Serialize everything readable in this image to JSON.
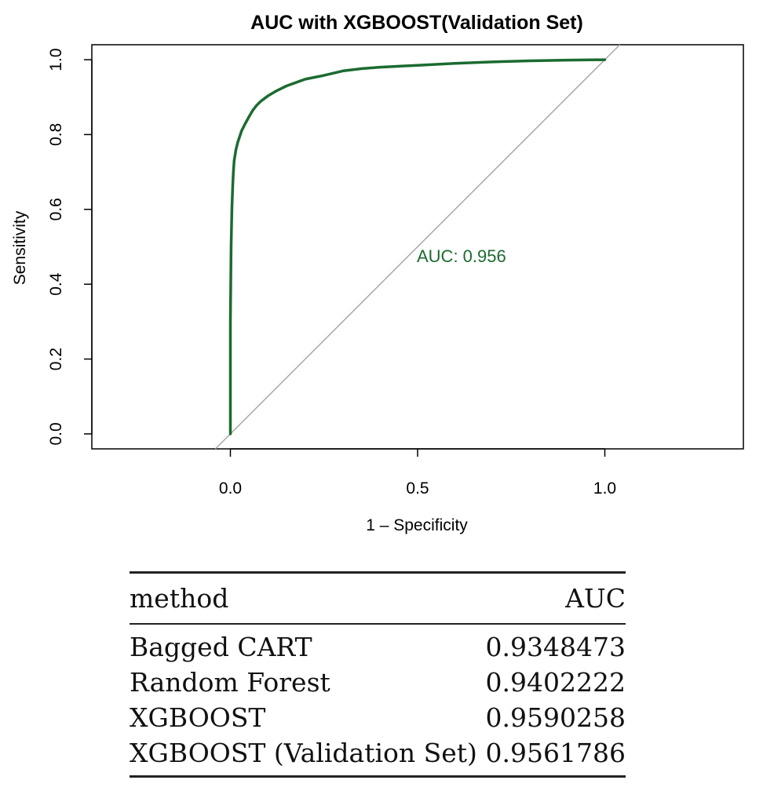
{
  "chart_data": {
    "type": "line",
    "title": "AUC with XGBOOST(Validation Set)",
    "xlabel": "1 – Specificity",
    "ylabel": "Sensitivity",
    "xlim": [
      -0.37,
      1.37
    ],
    "ylim": [
      -0.04,
      1.04
    ],
    "x_ticks": [
      "0.0",
      "0.5",
      "1.0"
    ],
    "y_ticks": [
      "0.0",
      "0.2",
      "0.4",
      "0.6",
      "0.8",
      "1.0"
    ],
    "grid": false,
    "annotation": "AUC: 0.956",
    "colors": {
      "roc": "#1b6b30",
      "reference": "#a8a8a8"
    },
    "series": [
      {
        "x": [
          0,
          0.0,
          0.002,
          0.004,
          0.006,
          0.008,
          0.01,
          0.015,
          0.02,
          0.025,
          0.03,
          0.04,
          0.05,
          0.06,
          0.07,
          0.08,
          0.1,
          0.12,
          0.15,
          0.2,
          0.25,
          0.3,
          0.35,
          0.4,
          0.5,
          0.6,
          0.7,
          0.8,
          0.9,
          1.0
        ],
        "y": [
          0,
          0.3,
          0.5,
          0.6,
          0.66,
          0.7,
          0.73,
          0.76,
          0.78,
          0.795,
          0.81,
          0.83,
          0.848,
          0.865,
          0.878,
          0.888,
          0.903,
          0.915,
          0.93,
          0.948,
          0.958,
          0.97,
          0.976,
          0.98,
          0.985,
          0.99,
          0.994,
          0.997,
          0.999,
          1.0
        ]
      },
      {
        "x": [
          -0.04,
          1.04
        ],
        "y": [
          -0.04,
          1.04
        ]
      }
    ]
  },
  "table": {
    "headers": [
      "method",
      "AUC"
    ],
    "rows": [
      [
        "Bagged CART",
        "0.9348473"
      ],
      [
        "Random Forest",
        "0.9402222"
      ],
      [
        "XGBOOST",
        "0.9590258"
      ],
      [
        "XGBOOST (Validation Set)",
        "0.9561786"
      ]
    ]
  }
}
